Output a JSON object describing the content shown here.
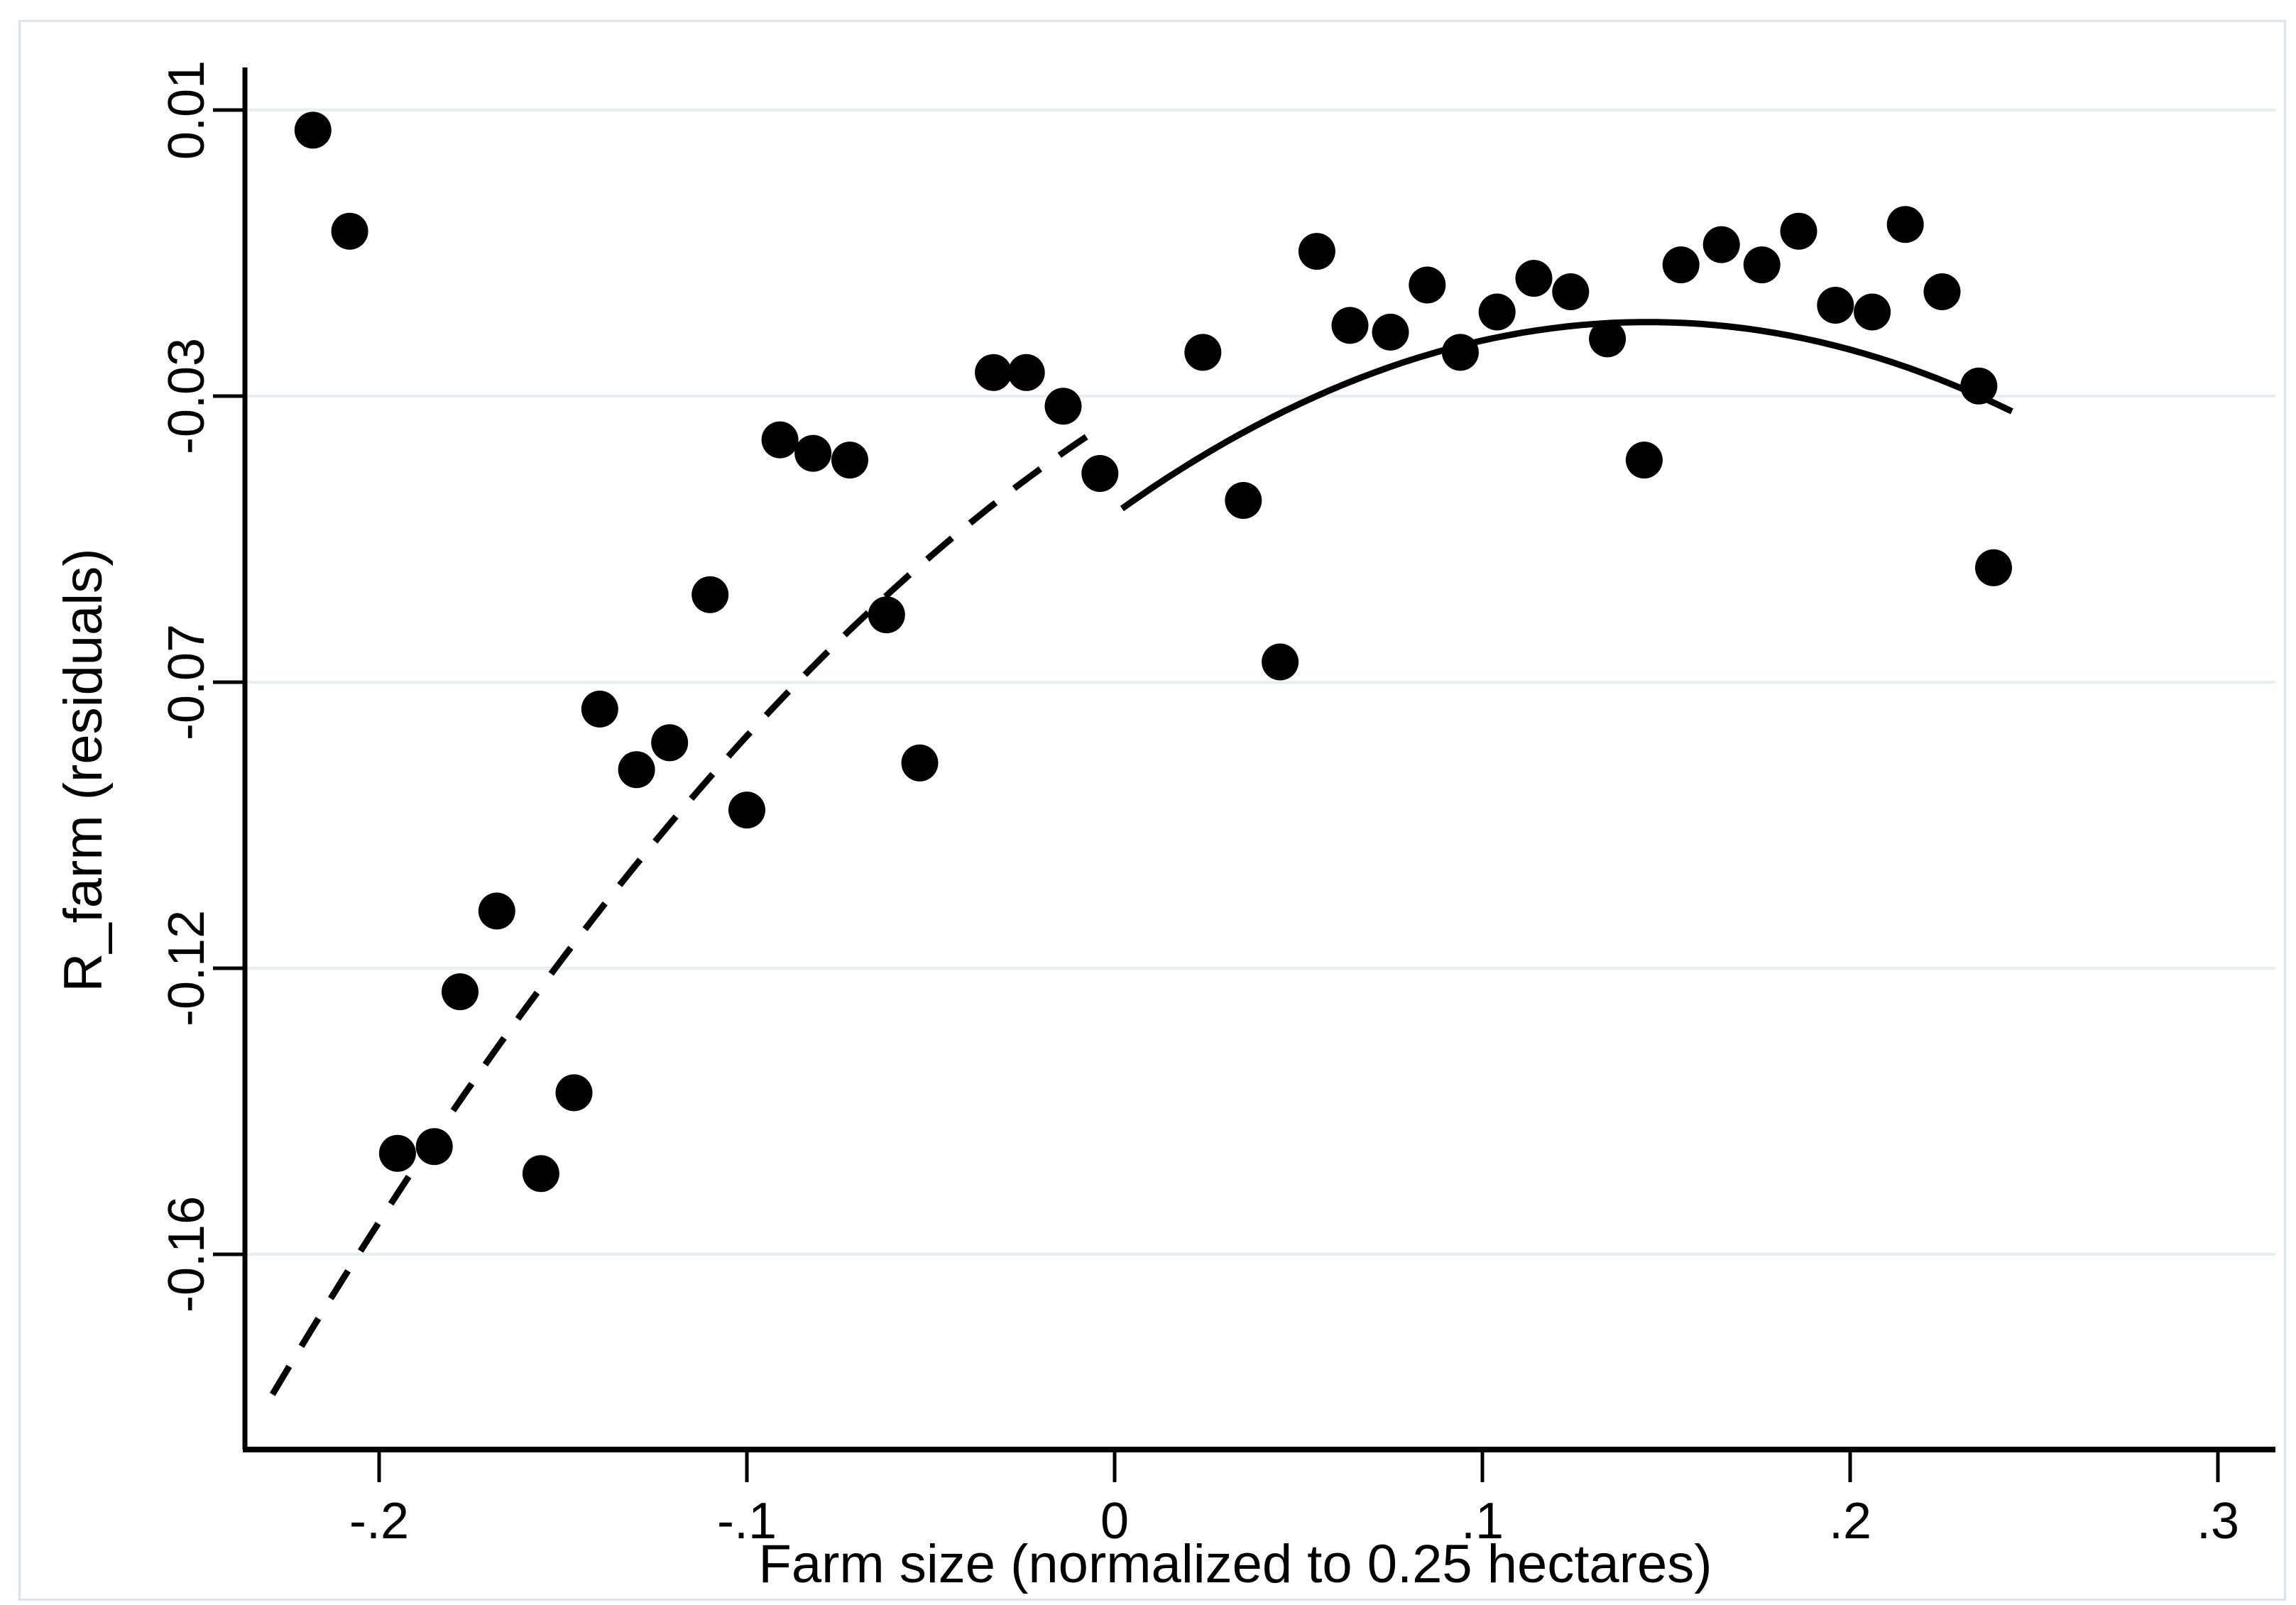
{
  "figure": {
    "background_color": "#ffffff",
    "border_color": "#d9e4ec",
    "foreground_color": "#000000",
    "gridline_color": "#e6eff2"
  },
  "x_axis": {
    "title": "Farm size (normalized to 0.25 hectares)",
    "tick_labels": [
      "-.2",
      "-.1",
      "0",
      ".1",
      ".2",
      ".3"
    ],
    "tick_values": [
      -0.2,
      -0.1,
      0,
      0.1,
      0.2,
      0.3
    ]
  },
  "y_axis": {
    "title": "R_farm (residuals)",
    "tick_labels": [
      "0.01",
      "-0.03",
      "-0.07",
      "-0.12",
      "-0.16"
    ],
    "tick_values": [
      0.01,
      -0.0325,
      -0.075,
      -0.1175,
      -0.16
    ]
  },
  "chart_data": {
    "type": "scatter",
    "title": "",
    "xlabel": "Farm size (normalized to 0.25 hectares)",
    "ylabel": "R_farm (residuals)",
    "xlim": [
      -0.2365,
      0.3156
    ],
    "ylim": [
      -0.189,
      0.0163
    ],
    "grid": "horizontal-only",
    "legend": "none",
    "marker_color": "#000000",
    "line_color": "#000000",
    "cutoff_x": 0,
    "points": [
      [
        -0.218,
        0.007
      ],
      [
        -0.208,
        -0.008
      ],
      [
        -0.195,
        -0.145
      ],
      [
        -0.185,
        -0.144
      ],
      [
        -0.178,
        -0.121
      ],
      [
        -0.168,
        -0.109
      ],
      [
        -0.156,
        -0.148
      ],
      [
        -0.147,
        -0.136
      ],
      [
        -0.14,
        -0.079
      ],
      [
        -0.13,
        -0.088
      ],
      [
        -0.121,
        -0.084
      ],
      [
        -0.11,
        -0.062
      ],
      [
        -0.1,
        -0.094
      ],
      [
        -0.091,
        -0.039
      ],
      [
        -0.082,
        -0.041
      ],
      [
        -0.072,
        -0.042
      ],
      [
        -0.062,
        -0.065
      ],
      [
        -0.053,
        -0.087
      ],
      [
        -0.033,
        -0.029
      ],
      [
        -0.024,
        -0.029
      ],
      [
        -0.014,
        -0.034
      ],
      [
        -0.004,
        -0.044
      ],
      [
        0.024,
        -0.026
      ],
      [
        0.035,
        -0.048
      ],
      [
        0.045,
        -0.072
      ],
      [
        0.055,
        -0.011
      ],
      [
        0.064,
        -0.022
      ],
      [
        0.075,
        -0.023
      ],
      [
        0.085,
        -0.016
      ],
      [
        0.094,
        -0.026
      ],
      [
        0.104,
        -0.02
      ],
      [
        0.114,
        -0.015
      ],
      [
        0.124,
        -0.017
      ],
      [
        0.134,
        -0.024
      ],
      [
        0.144,
        -0.042
      ],
      [
        0.154,
        -0.013
      ],
      [
        0.165,
        -0.01
      ],
      [
        0.176,
        -0.013
      ],
      [
        0.186,
        -0.008
      ],
      [
        0.196,
        -0.019
      ],
      [
        0.206,
        -0.02
      ],
      [
        0.215,
        -0.007
      ],
      [
        0.225,
        -0.017
      ],
      [
        0.235,
        -0.031
      ],
      [
        0.239,
        -0.058
      ]
    ],
    "fit_lines": [
      {
        "name": "fit-pre-cutoff",
        "style": "dashed",
        "form": "standard",
        "a": -1.25,
        "b": 0.347,
        "c": -0.0358,
        "domain": [
          -0.229,
          -0.004
        ]
      },
      {
        "name": "fit-post-cutoff",
        "style": "solid",
        "form": "vertex",
        "a": -1.355,
        "h": 0.145,
        "k": -0.0215,
        "domain": [
          0.002,
          0.244
        ]
      }
    ]
  }
}
